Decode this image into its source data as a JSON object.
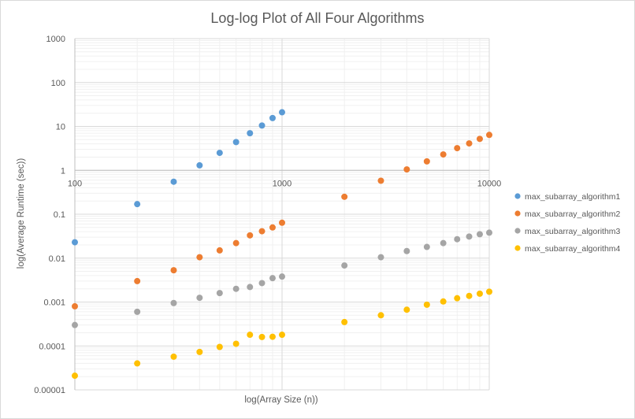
{
  "chart_data": {
    "type": "scatter",
    "title": "Log-log Plot of All Four Algorithms",
    "xlabel": "log(Array Size (n))",
    "ylabel": "log(Average Runtime (sec))",
    "x_scale": "log",
    "y_scale": "log",
    "xlim": [
      100,
      10000
    ],
    "ylim": [
      1e-05,
      1000
    ],
    "x_ticks": [
      {
        "value": 100,
        "label": "100"
      },
      {
        "value": 1000,
        "label": "1000"
      },
      {
        "value": 10000,
        "label": "10000"
      }
    ],
    "y_ticks": [
      {
        "value": 1e-05,
        "label": "0.00001"
      },
      {
        "value": 0.0001,
        "label": "0.0001"
      },
      {
        "value": 0.001,
        "label": "0.001"
      },
      {
        "value": 0.01,
        "label": "0.01"
      },
      {
        "value": 0.1,
        "label": "0.1"
      },
      {
        "value": 1,
        "label": "1"
      },
      {
        "value": 10,
        "label": "10"
      },
      {
        "value": 100,
        "label": "100"
      },
      {
        "value": 1000,
        "label": "1000"
      }
    ],
    "grid": true,
    "legend_position": "right",
    "series": [
      {
        "name": "max_subarray_algorithm1",
        "color": "#5B9BD5",
        "points": [
          {
            "x": 100,
            "y": 0.023
          },
          {
            "x": 200,
            "y": 0.17
          },
          {
            "x": 300,
            "y": 0.55
          },
          {
            "x": 400,
            "y": 1.3
          },
          {
            "x": 500,
            "y": 2.5
          },
          {
            "x": 600,
            "y": 4.4
          },
          {
            "x": 700,
            "y": 7.0
          },
          {
            "x": 800,
            "y": 10.5
          },
          {
            "x": 900,
            "y": 15.5
          },
          {
            "x": 1000,
            "y": 21
          }
        ]
      },
      {
        "name": "max_subarray_algorithm2",
        "color": "#ED7D31",
        "points": [
          {
            "x": 100,
            "y": 0.0008
          },
          {
            "x": 200,
            "y": 0.003
          },
          {
            "x": 300,
            "y": 0.0053
          },
          {
            "x": 400,
            "y": 0.0105
          },
          {
            "x": 500,
            "y": 0.015
          },
          {
            "x": 600,
            "y": 0.022
          },
          {
            "x": 700,
            "y": 0.033
          },
          {
            "x": 800,
            "y": 0.041
          },
          {
            "x": 900,
            "y": 0.05
          },
          {
            "x": 1000,
            "y": 0.064
          },
          {
            "x": 2000,
            "y": 0.25
          },
          {
            "x": 3000,
            "y": 0.58
          },
          {
            "x": 4000,
            "y": 1.05
          },
          {
            "x": 5000,
            "y": 1.6
          },
          {
            "x": 6000,
            "y": 2.3
          },
          {
            "x": 7000,
            "y": 3.2
          },
          {
            "x": 8000,
            "y": 4.1
          },
          {
            "x": 9000,
            "y": 5.2
          },
          {
            "x": 10000,
            "y": 6.4
          }
        ]
      },
      {
        "name": "max_subarray_algorithm3",
        "color": "#A5A5A5",
        "points": [
          {
            "x": 100,
            "y": 0.0003
          },
          {
            "x": 200,
            "y": 0.0006
          },
          {
            "x": 300,
            "y": 0.00095
          },
          {
            "x": 400,
            "y": 0.00125
          },
          {
            "x": 500,
            "y": 0.0016
          },
          {
            "x": 600,
            "y": 0.002
          },
          {
            "x": 700,
            "y": 0.0022
          },
          {
            "x": 800,
            "y": 0.0027
          },
          {
            "x": 900,
            "y": 0.0035
          },
          {
            "x": 1000,
            "y": 0.0038
          },
          {
            "x": 2000,
            "y": 0.0068
          },
          {
            "x": 3000,
            "y": 0.0105
          },
          {
            "x": 4000,
            "y": 0.0145
          },
          {
            "x": 5000,
            "y": 0.018
          },
          {
            "x": 6000,
            "y": 0.022
          },
          {
            "x": 7000,
            "y": 0.027
          },
          {
            "x": 8000,
            "y": 0.031
          },
          {
            "x": 9000,
            "y": 0.035
          },
          {
            "x": 10000,
            "y": 0.038
          }
        ]
      },
      {
        "name": "max_subarray_algorithm4",
        "color": "#FFC000",
        "points": [
          {
            "x": 100,
            "y": 2.1e-05
          },
          {
            "x": 200,
            "y": 4e-05
          },
          {
            "x": 300,
            "y": 5.7e-05
          },
          {
            "x": 400,
            "y": 7.3e-05
          },
          {
            "x": 500,
            "y": 9.5e-05
          },
          {
            "x": 600,
            "y": 0.000112
          },
          {
            "x": 700,
            "y": 0.00018
          },
          {
            "x": 800,
            "y": 0.00016
          },
          {
            "x": 900,
            "y": 0.000162
          },
          {
            "x": 1000,
            "y": 0.00018
          },
          {
            "x": 2000,
            "y": 0.00035
          },
          {
            "x": 3000,
            "y": 0.0005
          },
          {
            "x": 4000,
            "y": 0.00067
          },
          {
            "x": 5000,
            "y": 0.00087
          },
          {
            "x": 6000,
            "y": 0.00103
          },
          {
            "x": 7000,
            "y": 0.00122
          },
          {
            "x": 8000,
            "y": 0.00138
          },
          {
            "x": 9000,
            "y": 0.00155
          },
          {
            "x": 10000,
            "y": 0.00172
          }
        ]
      }
    ]
  }
}
